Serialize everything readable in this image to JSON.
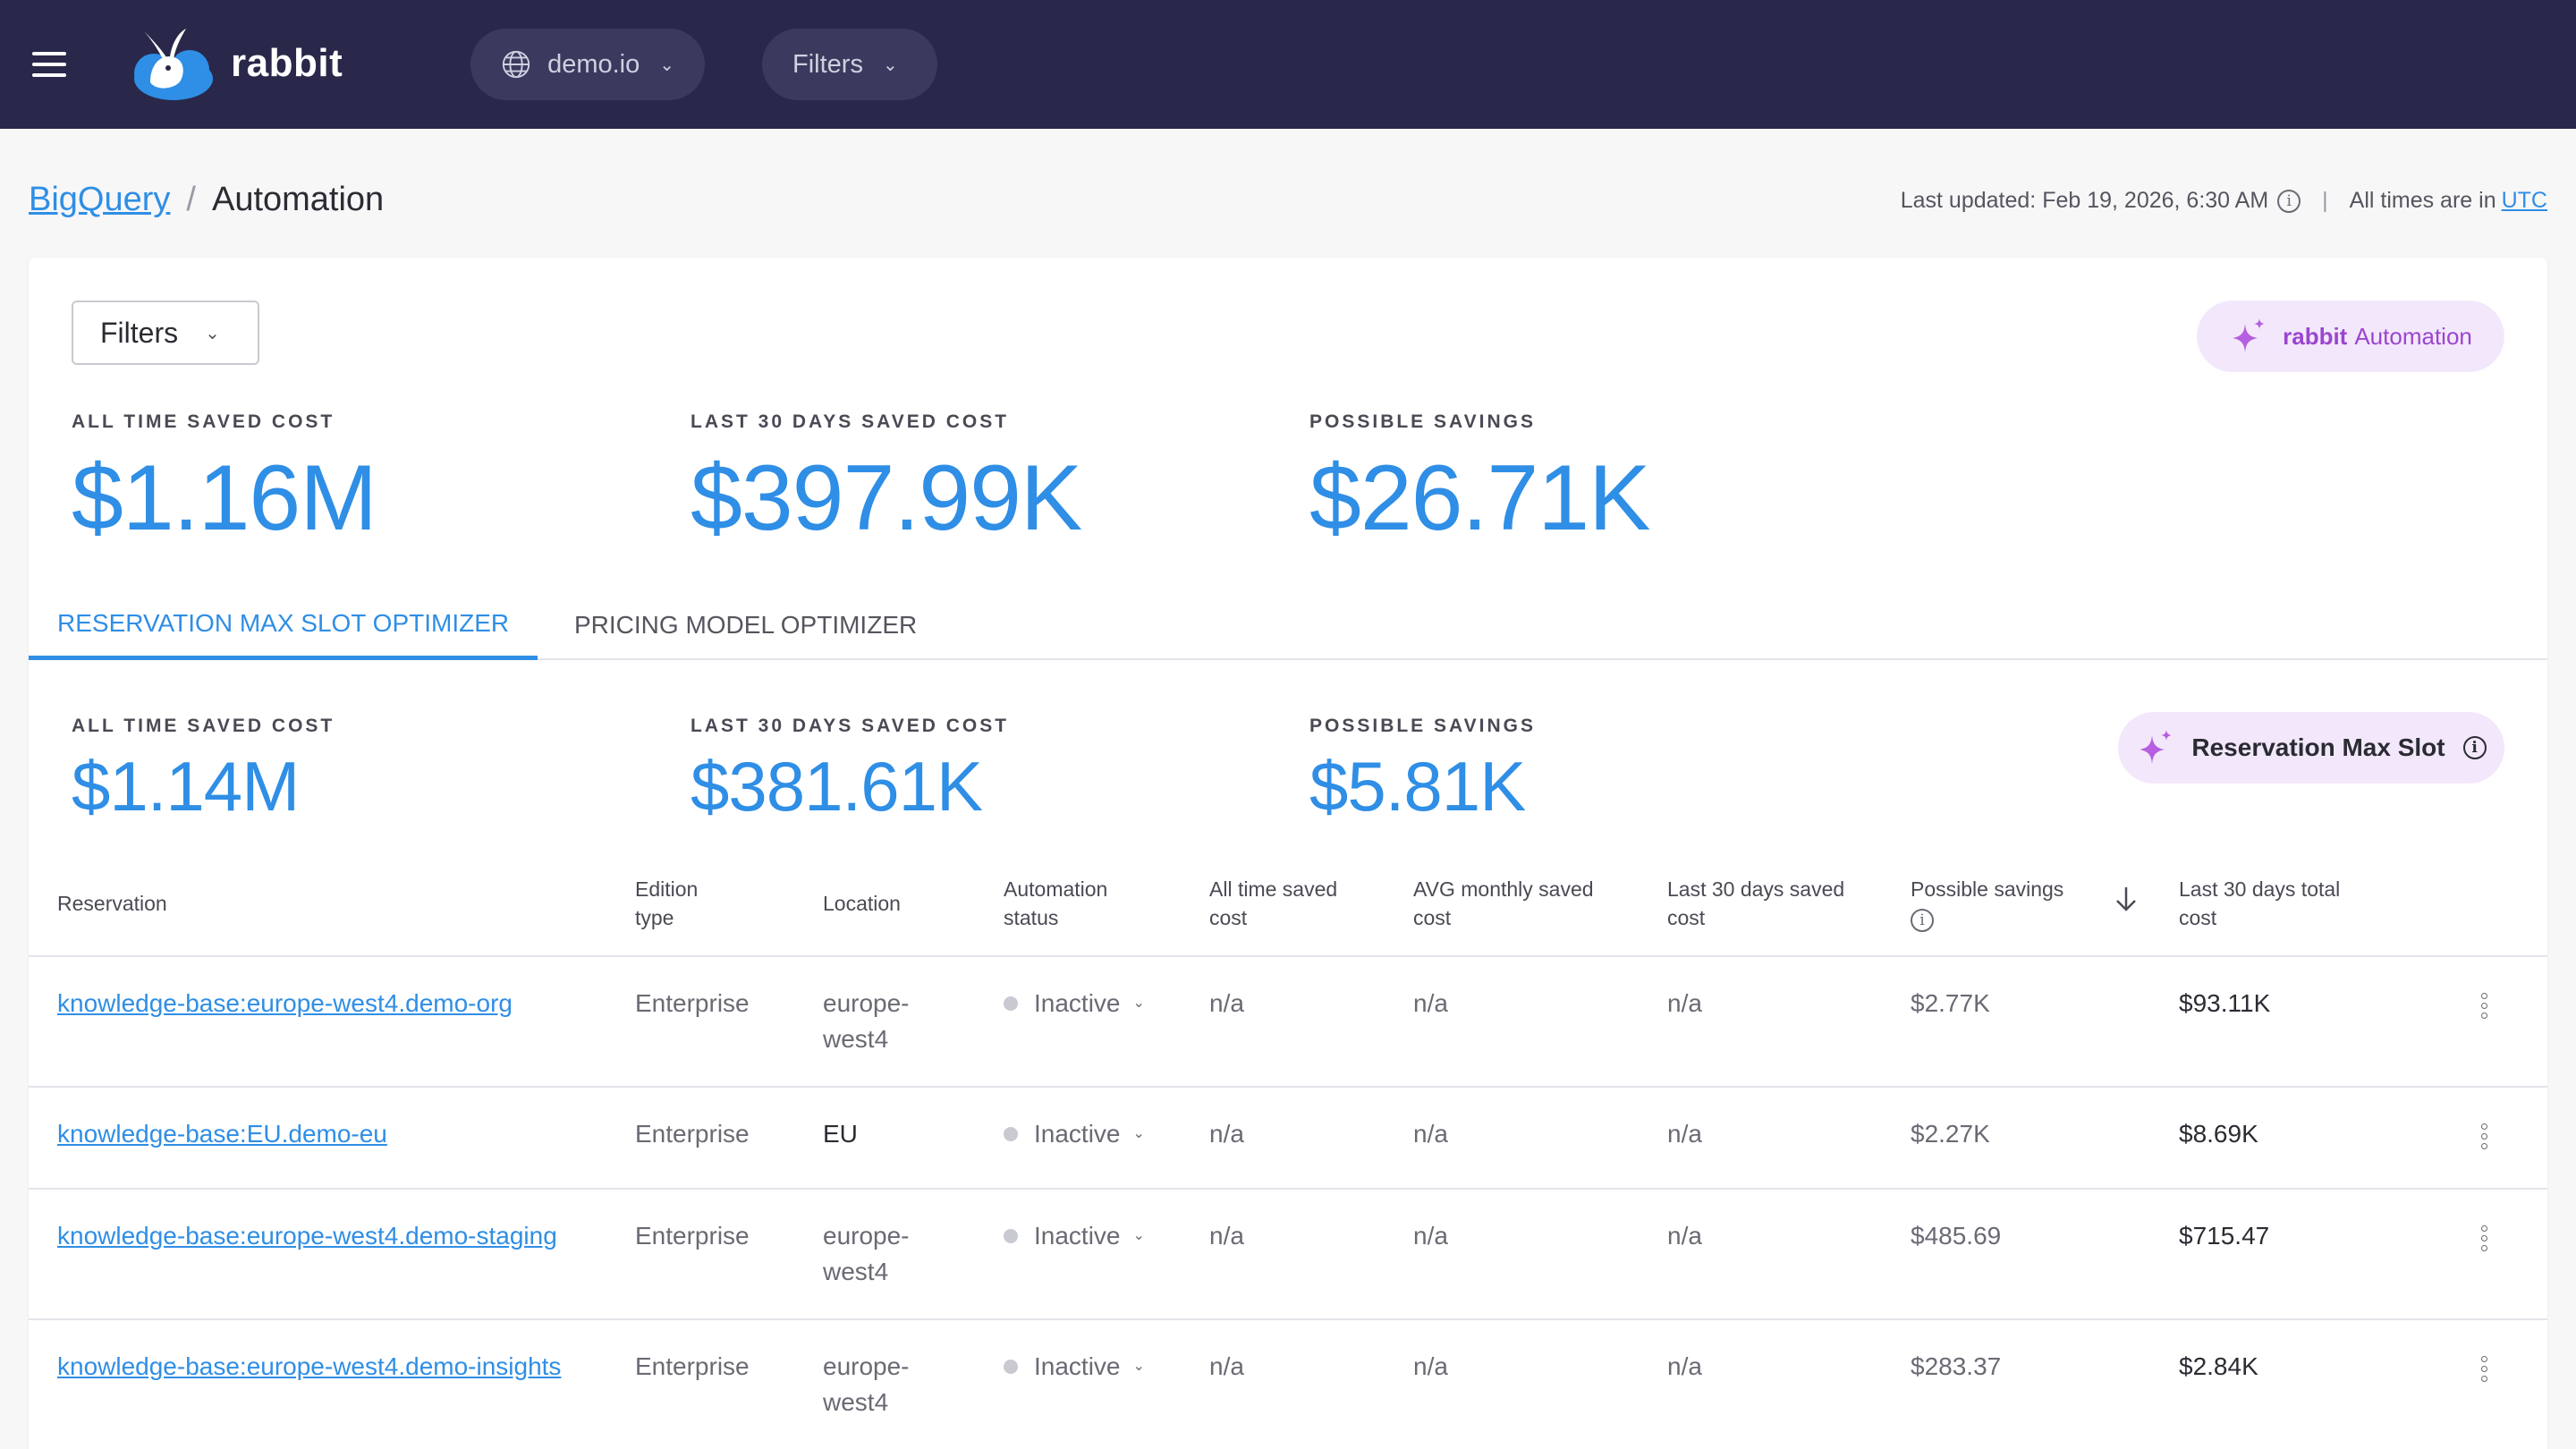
{
  "header": {
    "brand": "rabbit",
    "project": "demo.io",
    "filters_label": "Filters"
  },
  "breadcrumb": {
    "parent": "BigQuery",
    "separator": "/",
    "current": "Automation"
  },
  "updated": {
    "text": "Last updated: Feb 19, 2026, 6:30 AM",
    "separator": "|",
    "tz_prefix": "All times are in",
    "tz": "UTC"
  },
  "card": {
    "filters_label": "Filters",
    "automation_pill": {
      "brand": "rabbit",
      "text": "Automation"
    },
    "metrics": [
      {
        "label": "ALL TIME SAVED COST",
        "value": "$1.16M"
      },
      {
        "label": "LAST 30 DAYS SAVED COST",
        "value": "$397.99K"
      },
      {
        "label": "POSSIBLE SAVINGS",
        "value": "$26.71K"
      }
    ],
    "tabs": [
      {
        "label": "RESERVATION MAX SLOT OPTIMIZER",
        "active": true
      },
      {
        "label": "PRICING MODEL OPTIMIZER",
        "active": false
      }
    ],
    "sub_metrics": [
      {
        "label": "ALL TIME SAVED COST",
        "value": "$1.14M"
      },
      {
        "label": "LAST 30 DAYS SAVED COST",
        "value": "$381.61K"
      },
      {
        "label": "POSSIBLE SAVINGS",
        "value": "$5.81K"
      }
    ],
    "reservation_pill": "Reservation Max Slot"
  },
  "table": {
    "columns": [
      {
        "line1": "Reservation",
        "line2": ""
      },
      {
        "line1": "Edition",
        "line2": "type"
      },
      {
        "line1": "Location",
        "line2": ""
      },
      {
        "line1": "Automation",
        "line2": "status"
      },
      {
        "line1": "All time saved",
        "line2": "cost"
      },
      {
        "line1": "AVG monthly saved",
        "line2": "cost"
      },
      {
        "line1": "Last 30 days saved",
        "line2": "cost"
      },
      {
        "line1": "Possible savings",
        "line2": ""
      },
      {
        "line1": "Last 30 days total",
        "line2": "cost"
      }
    ],
    "rows": [
      {
        "reservation": "knowledge-base:europe-west4.demo-org",
        "edition": "Enterprise",
        "loc1": "europe-",
        "loc2": "west4",
        "status": "Inactive",
        "all_time": "n/a",
        "avg_monthly": "n/a",
        "last30": "n/a",
        "possible": "$2.77K",
        "total": "$93.11K"
      },
      {
        "reservation": "knowledge-base:EU.demo-eu",
        "edition": "Enterprise",
        "loc1": "EU",
        "loc2": "",
        "status": "Inactive",
        "all_time": "n/a",
        "avg_monthly": "n/a",
        "last30": "n/a",
        "possible": "$2.27K",
        "total": "$8.69K"
      },
      {
        "reservation": "knowledge-base:europe-west4.demo-staging",
        "edition": "Enterprise",
        "loc1": "europe-",
        "loc2": "west4",
        "status": "Inactive",
        "all_time": "n/a",
        "avg_monthly": "n/a",
        "last30": "n/a",
        "possible": "$485.69",
        "total": "$715.47"
      },
      {
        "reservation": "knowledge-base:europe-west4.demo-insights",
        "edition": "Enterprise",
        "loc1": "europe-",
        "loc2": "west4",
        "status": "Inactive",
        "all_time": "n/a",
        "avg_monthly": "n/a",
        "last30": "n/a",
        "possible": "$283.37",
        "total": "$2.84K"
      }
    ]
  }
}
